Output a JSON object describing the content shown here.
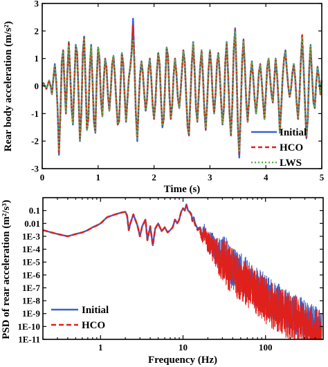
{
  "chart_data": [
    {
      "type": "line",
      "xlabel": "Time (s)",
      "ylabel": "Rear body acceleration (m/s²)",
      "xlim": [
        0,
        5
      ],
      "ylim": [
        -3,
        3
      ],
      "x_ticks": [
        "0",
        "1",
        "2",
        "3",
        "4",
        "5"
      ],
      "y_ticks": [
        "-3",
        "-2",
        "-1",
        "0",
        "1",
        "2",
        "3"
      ],
      "legend_position": "bottom-right",
      "sample_step": 0.025,
      "series": [
        {
          "name": "Initial",
          "color": "#3a62c8",
          "dash": "solid",
          "values": [
            0.0,
            0.1,
            0.0,
            -0.1,
            0.05,
            0.2,
            0.0,
            -0.3,
            0.3,
            0.8,
            0.2,
            -0.8,
            -2.5,
            -1.0,
            0.9,
            1.3,
            0.0,
            -1.0,
            0.5,
            1.6,
            0.5,
            -0.8,
            -1.4,
            0.2,
            1.5,
            1.2,
            -0.3,
            -2.0,
            -1.0,
            1.2,
            1.8,
            0.2,
            -1.6,
            -1.2,
            0.6,
            1.5,
            0.2,
            -1.3,
            -1.7,
            0.3,
            1.4,
            1.0,
            -0.5,
            -1.1,
            0.2,
            1.0,
            0.7,
            -0.3,
            -0.9,
            -0.2,
            0.8,
            1.1,
            0.4,
            -0.6,
            -1.4,
            -1.3,
            0.0,
            1.2,
            0.8,
            -0.4,
            -1.3,
            -0.5,
            0.3,
            0.7,
            1.3,
            2.45,
            0.8,
            -1.0,
            -2.0,
            -0.7,
            0.4,
            0.9,
            0.5,
            -0.3,
            -0.9,
            -0.5,
            0.6,
            1.0,
            0.3,
            -0.7,
            -1.2,
            -0.6,
            0.5,
            1.2,
            0.8,
            -0.5,
            -1.5,
            -1.2,
            0.2,
            1.4,
            1.1,
            -0.3,
            -1.2,
            -0.7,
            0.4,
            1.0,
            0.5,
            -0.4,
            -0.8,
            -0.2,
            0.6,
            1.3,
            0.9,
            -0.4,
            -1.5,
            -1.8,
            -0.5,
            0.8,
            1.6,
            0.6,
            -0.8,
            -1.3,
            -0.3,
            0.7,
            1.3,
            0.4,
            -0.9,
            -1.6,
            -0.6,
            0.6,
            1.3,
            0.7,
            -0.4,
            -1.0,
            -0.3,
            0.8,
            1.2,
            0.5,
            -0.6,
            -1.4,
            -0.8,
            0.9,
            1.6,
            0.4,
            -1.0,
            -1.8,
            -0.7,
            1.3,
            2.1,
            0.6,
            -1.5,
            -2.6,
            -1.0,
            0.9,
            1.7,
            0.7,
            -0.6,
            -1.3,
            -0.5,
            0.4,
            0.9,
            0.3,
            -0.5,
            -1.0,
            -0.4,
            0.5,
            0.8,
            0.2,
            -0.6,
            -1.2,
            -0.3,
            0.7,
            1.0,
            0.3,
            -0.3,
            -0.6,
            0.2,
            1.0,
            0.4,
            -0.5,
            -1.7,
            -0.8,
            0.3,
            1.0,
            1.3,
            0.6,
            0.0,
            -0.4,
            -0.1,
            0.5,
            0.8,
            0.3,
            -0.6,
            -1.2,
            -0.4,
            0.9,
            1.7,
            0.7,
            -0.7,
            -1.9,
            -1.2,
            0.6,
            1.5,
            0.4,
            -0.6,
            -0.8,
            0.1,
            0.7,
            0.3,
            -0.3,
            0.2
          ]
        },
        {
          "name": "HCO",
          "color": "#e0201b",
          "dash": "6,4",
          "values": [
            0.0,
            0.1,
            0.0,
            -0.1,
            0.05,
            0.2,
            0.0,
            -0.28,
            0.3,
            0.78,
            0.2,
            -0.78,
            -2.4,
            -0.98,
            0.88,
            1.28,
            0.0,
            -0.98,
            0.5,
            1.55,
            0.48,
            -0.78,
            -1.38,
            0.2,
            1.45,
            1.18,
            -0.3,
            -1.95,
            -0.98,
            1.18,
            1.75,
            0.2,
            -1.58,
            -1.18,
            0.58,
            1.45,
            0.2,
            -1.28,
            -1.65,
            0.3,
            1.38,
            0.98,
            -0.48,
            -1.08,
            0.2,
            0.98,
            0.68,
            -0.3,
            -0.88,
            -0.2,
            0.78,
            1.08,
            0.4,
            -0.58,
            -1.38,
            -1.28,
            0.0,
            1.18,
            0.78,
            -0.4,
            -1.28,
            -0.48,
            0.3,
            0.68,
            1.25,
            2.2,
            0.78,
            -0.98,
            -1.9,
            -0.68,
            0.4,
            0.88,
            0.48,
            -0.3,
            -0.88,
            -0.48,
            0.58,
            0.98,
            0.3,
            -0.68,
            -1.18,
            -0.58,
            0.48,
            1.18,
            0.78,
            -0.48,
            -1.45,
            -1.18,
            0.2,
            1.38,
            1.08,
            -0.3,
            -1.18,
            -0.68,
            0.4,
            0.98,
            0.48,
            -0.4,
            -0.78,
            -0.2,
            0.58,
            1.28,
            0.88,
            -0.4,
            -1.45,
            -1.75,
            -0.48,
            0.78,
            1.55,
            0.58,
            -0.78,
            -1.28,
            -0.3,
            0.68,
            1.28,
            0.4,
            -0.88,
            -1.55,
            -0.58,
            0.58,
            1.28,
            0.68,
            -0.4,
            -0.98,
            -0.3,
            0.78,
            1.18,
            0.48,
            -0.58,
            -1.38,
            -0.78,
            0.88,
            1.55,
            0.4,
            -0.98,
            -1.75,
            -0.68,
            1.25,
            2.0,
            0.58,
            -1.45,
            -2.45,
            -0.98,
            0.88,
            1.65,
            0.68,
            -0.58,
            -1.28,
            -0.48,
            0.4,
            0.88,
            0.3,
            -0.48,
            -0.98,
            -0.4,
            0.48,
            0.78,
            0.2,
            -0.58,
            -1.18,
            -0.3,
            0.68,
            0.98,
            0.3,
            -0.3,
            -0.58,
            0.2,
            0.98,
            0.4,
            -0.48,
            -1.65,
            -0.78,
            0.3,
            0.98,
            1.25,
            0.58,
            0.0,
            -0.4,
            -0.1,
            0.48,
            0.78,
            0.3,
            -0.58,
            -1.18,
            -0.4,
            0.88,
            1.85,
            0.68,
            -0.68,
            -1.85,
            -1.18,
            0.58,
            1.45,
            0.4,
            -0.58,
            -0.78,
            0.1,
            0.68,
            0.3,
            -0.3,
            0.2
          ]
        },
        {
          "name": "LWS",
          "color": "#50b848",
          "dash": "2,3",
          "values": [
            0.0,
            0.1,
            0.0,
            -0.1,
            0.05,
            0.2,
            0.0,
            -0.28,
            0.3,
            0.78,
            0.2,
            -0.78,
            -2.3,
            -0.98,
            0.88,
            1.28,
            0.0,
            -0.98,
            0.5,
            1.5,
            0.48,
            -0.78,
            -1.38,
            0.2,
            1.45,
            1.18,
            -0.3,
            -1.95,
            -0.98,
            1.18,
            1.75,
            0.2,
            -1.58,
            -1.18,
            0.58,
            1.45,
            0.2,
            -1.28,
            -1.65,
            0.3,
            1.38,
            0.98,
            -0.48,
            -1.08,
            0.2,
            0.98,
            0.68,
            -0.3,
            -0.88,
            -0.2,
            0.78,
            1.08,
            0.4,
            -0.58,
            -1.38,
            -1.28,
            0.0,
            1.18,
            0.78,
            -0.4,
            -1.28,
            -0.48,
            0.3,
            0.68,
            1.25,
            1.7,
            0.78,
            -0.98,
            -1.9,
            -0.68,
            0.4,
            0.88,
            0.48,
            -0.3,
            -0.88,
            -0.48,
            0.58,
            0.98,
            0.3,
            -0.68,
            -1.18,
            -0.58,
            0.48,
            1.18,
            0.78,
            -0.48,
            -1.45,
            -1.18,
            0.2,
            1.38,
            1.08,
            -0.3,
            -1.18,
            -0.68,
            0.4,
            0.98,
            0.48,
            -0.4,
            -0.78,
            -0.2,
            0.58,
            1.28,
            0.88,
            -0.4,
            -1.45,
            -1.75,
            -0.48,
            0.78,
            1.55,
            0.58,
            -0.78,
            -1.28,
            -0.3,
            0.68,
            1.28,
            0.4,
            -0.88,
            -1.55,
            -0.58,
            0.58,
            1.28,
            0.68,
            -0.4,
            -0.98,
            -0.3,
            0.78,
            1.18,
            0.48,
            -0.58,
            -1.38,
            -0.78,
            0.88,
            1.55,
            0.4,
            -0.98,
            -1.75,
            -0.68,
            1.25,
            2.0,
            0.58,
            -1.45,
            -2.4,
            -0.98,
            0.88,
            1.65,
            0.68,
            -0.58,
            -1.28,
            -0.48,
            0.4,
            0.88,
            0.3,
            -0.48,
            -0.98,
            -0.4,
            0.48,
            0.78,
            0.2,
            -0.58,
            -1.18,
            -0.3,
            0.68,
            0.98,
            0.3,
            -0.3,
            -0.58,
            0.2,
            0.98,
            0.4,
            -0.48,
            -1.65,
            -0.78,
            0.3,
            0.98,
            1.25,
            0.58,
            0.0,
            -0.4,
            -0.1,
            0.48,
            0.78,
            0.3,
            -0.58,
            -1.18,
            -0.4,
            0.88,
            1.8,
            0.68,
            -0.68,
            -1.85,
            -1.18,
            0.58,
            1.45,
            0.4,
            -0.58,
            -0.78,
            0.1,
            0.68,
            0.3,
            -0.3,
            0.2
          ]
        }
      ]
    },
    {
      "type": "line",
      "xlabel": "Frequency (Hz)",
      "ylabel": "PSD of rear acceleration (m²/s³)",
      "x_scale": "log",
      "y_scale": "log",
      "xlim": [
        0.2,
        500
      ],
      "ylim": [
        1e-11,
        1
      ],
      "x_ticks": [
        "1",
        "10",
        "100"
      ],
      "y_ticks": [
        "0.1",
        "0.01",
        "1E-3",
        "1E-4",
        "1E-5",
        "1E-6",
        "1E-7",
        "1E-8",
        "1E-9",
        "1E-10",
        "1E-11"
      ],
      "legend_position": "bottom-left",
      "series": [
        {
          "name": "Initial",
          "color": "#3a62c8",
          "dash": "solid",
          "x": [
            0.2,
            0.3,
            0.4,
            0.5,
            0.6,
            0.7,
            0.8,
            0.9,
            1.0,
            1.2,
            1.5,
            1.8,
            2.0,
            2.1,
            2.2,
            2.3,
            2.5,
            2.8,
            3.0,
            3.2,
            3.5,
            3.7,
            4.0,
            4.3,
            4.6,
            5.0,
            5.5,
            6.0,
            6.5,
            7.0,
            7.5,
            8.0,
            8.5,
            9.0,
            9.5,
            10.0,
            10.5,
            11.0,
            11.5,
            12.0,
            12.5,
            13.0,
            13.5,
            14.0,
            15.0,
            16.0,
            17.0,
            18.0,
            20.0,
            22.0,
            25.0,
            28.0,
            32.0,
            36.0,
            40.0,
            45.0,
            50.0,
            60.0,
            70.0,
            80.0,
            100.0,
            120.0,
            150.0,
            180.0,
            220.0,
            270.0,
            330.0,
            400.0,
            480.0
          ],
          "values": [
            0.003,
            0.0015,
            0.001,
            0.0015,
            0.002,
            0.003,
            0.005,
            0.007,
            0.01,
            0.03,
            0.05,
            0.07,
            0.08,
            0.04,
            0.003,
            0.01,
            0.05,
            0.007,
            0.001,
            0.006,
            0.02,
            0.0005,
            0.006,
            0.0002,
            0.004,
            0.01,
            0.0025,
            0.005,
            0.002,
            0.003,
            0.005,
            0.02,
            0.01,
            0.02,
            0.08,
            0.15,
            0.1,
            0.3,
            0.1,
            0.08,
            0.06,
            0.02,
            0.03,
            0.01,
            0.004,
            0.005,
            0.001,
            0.003,
            0.0005,
            0.0003,
            0.0001,
            5e-05,
            3e-05,
            1e-05,
            5e-06,
            2e-06,
            1.5e-06,
            5e-07,
            2e-07,
            1e-07,
            3e-08,
            1e-08,
            5e-09,
            2e-09,
            1e-09,
            5e-10,
            2e-10,
            1e-10,
            5e-11
          ]
        },
        {
          "name": "HCO",
          "color": "#e0201b",
          "dash": "7,4",
          "x": [
            0.2,
            0.3,
            0.4,
            0.5,
            0.6,
            0.7,
            0.8,
            0.9,
            1.0,
            1.2,
            1.5,
            1.8,
            2.0,
            2.1,
            2.2,
            2.3,
            2.5,
            2.8,
            3.0,
            3.2,
            3.5,
            3.7,
            4.0,
            4.3,
            4.6,
            5.0,
            5.5,
            6.0,
            6.5,
            7.0,
            7.5,
            8.0,
            8.5,
            9.0,
            9.5,
            10.0,
            10.5,
            11.0,
            11.5,
            12.0,
            12.5,
            13.0,
            13.5,
            14.0,
            15.0,
            16.0,
            17.0,
            18.0,
            20.0,
            22.0,
            25.0,
            28.0,
            32.0,
            36.0,
            40.0,
            45.0,
            50.0,
            60.0,
            70.0,
            80.0,
            100.0,
            120.0,
            150.0,
            180.0,
            220.0,
            270.0,
            330.0,
            400.0,
            480.0
          ],
          "values": [
            0.003,
            0.0015,
            0.001,
            0.0015,
            0.002,
            0.003,
            0.005,
            0.007,
            0.01,
            0.03,
            0.05,
            0.07,
            0.08,
            0.04,
            0.003,
            0.01,
            0.05,
            0.007,
            0.001,
            0.006,
            0.02,
            0.0005,
            0.006,
            0.0002,
            0.004,
            0.01,
            0.0025,
            0.005,
            0.002,
            0.003,
            0.005,
            0.02,
            0.01,
            0.02,
            0.08,
            0.15,
            0.1,
            0.25,
            0.1,
            0.08,
            0.05,
            0.015,
            0.02,
            0.008,
            0.003,
            0.004,
            0.0008,
            0.002,
            0.0003,
            0.0002,
            5e-05,
            2e-05,
            1e-05,
            4e-06,
            2e-06,
            8e-07,
            5e-07,
            2e-07,
            8e-08,
            4e-08,
            1e-08,
            4e-09,
            2e-09,
            8e-10,
            4e-10,
            2e-10,
            8e-11,
            4e-11,
            2e-11
          ]
        }
      ]
    }
  ]
}
